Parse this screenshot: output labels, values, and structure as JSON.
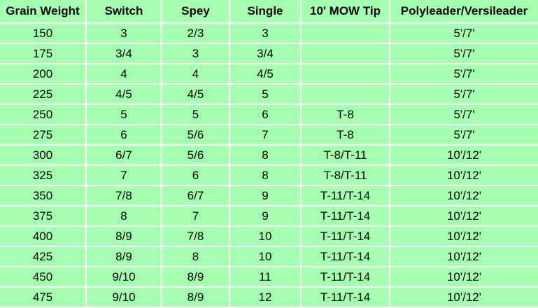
{
  "table": {
    "headers": [
      "Grain Weight",
      "Switch",
      "Spey",
      "Single",
      "10' MOW Tip",
      "Polyleader/Versileader"
    ],
    "rows": [
      [
        "150",
        "3",
        "2/3",
        "3",
        "",
        "5'/7'"
      ],
      [
        "175",
        "3/4",
        "3",
        "3/4",
        "",
        "5'/7'"
      ],
      [
        "200",
        "4",
        "4",
        "4/5",
        "",
        "5'/7'"
      ],
      [
        "225",
        "4/5",
        "4/5",
        "5",
        "",
        "5'/7'"
      ],
      [
        "250",
        "5",
        "5",
        "6",
        "T-8",
        "5'/7'"
      ],
      [
        "275",
        "6",
        "5/6",
        "7",
        "T-8",
        "5'/7'"
      ],
      [
        "300",
        "6/7",
        "5/6",
        "8",
        "T-8/T-11",
        "10'/12'"
      ],
      [
        "325",
        "7",
        "6",
        "8",
        "T-8/T-11",
        "10'/12'"
      ],
      [
        "350",
        "7/8",
        "6/7",
        "9",
        "T-11/T-14",
        "10'/12'"
      ],
      [
        "375",
        "8",
        "7",
        "9",
        "T-11/T-14",
        "10'/12'"
      ],
      [
        "400",
        "8/9",
        "7/8",
        "10",
        "T-11/T-14",
        "10'/12'"
      ],
      [
        "425",
        "8/9",
        "8",
        "10",
        "T-11/T-14",
        "10'/12'"
      ],
      [
        "450",
        "9/10",
        "8/9",
        "11",
        "T-11/T-14",
        "10'/12'"
      ],
      [
        "475",
        "9/10",
        "8/9",
        "12",
        "T-11/T-14",
        "10'/12'"
      ]
    ]
  },
  "colors": {
    "cell_background": "#a4ffb1",
    "grid_lines": "#ffffff",
    "text": "#000000"
  }
}
